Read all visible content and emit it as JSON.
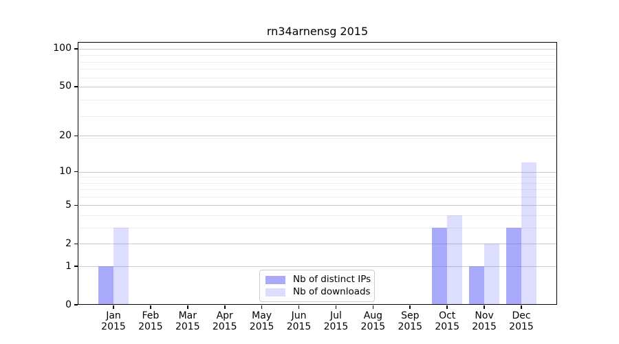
{
  "figure": {
    "background": "#ffffff",
    "text_color": "#000000",
    "grid_major_color": "#cbcbcb",
    "grid_minor_color": "#ededed"
  },
  "chart_data": {
    "type": "bar",
    "title": "rn34arnensg 2015",
    "categories": [
      "Jan 2015",
      "Feb 2015",
      "Mar 2015",
      "Apr 2015",
      "May 2015",
      "Jun 2015",
      "Jul 2015",
      "Aug 2015",
      "Sep 2015",
      "Oct 2015",
      "Nov 2015",
      "Dec 2015"
    ],
    "series": [
      {
        "name": "Nb of distinct IPs",
        "color": "rgba(100,100,245,0.55)",
        "color_hex_on_white": "#aaaaf9",
        "values": [
          1,
          0,
          0,
          0,
          0,
          0,
          0,
          0,
          0,
          3,
          1,
          3
        ]
      },
      {
        "name": "Nb of downloads",
        "color": "rgba(100,100,245,0.22)",
        "color_hex_on_white": "#dcdcfb",
        "values": [
          3,
          0,
          0,
          0,
          0,
          0,
          0,
          0,
          0,
          4,
          2,
          12
        ]
      }
    ],
    "xlabel": "",
    "ylabel": "",
    "yaxis": {
      "scale": "log1p",
      "major_ticks": [
        0,
        1,
        2,
        5,
        10,
        20,
        50,
        100
      ],
      "tick_labels": [
        "0",
        "1",
        "2",
        "5",
        "10",
        "20",
        "50",
        "100"
      ],
      "minor_ticks": [
        3,
        4,
        6,
        7,
        8,
        9,
        19,
        29,
        39,
        59,
        69,
        79,
        89
      ],
      "ylim": [
        0,
        113
      ]
    },
    "grid": {
      "major": true,
      "minor": true
    },
    "legend": {
      "position": "lower-center",
      "border_color": "#cccccc"
    }
  }
}
